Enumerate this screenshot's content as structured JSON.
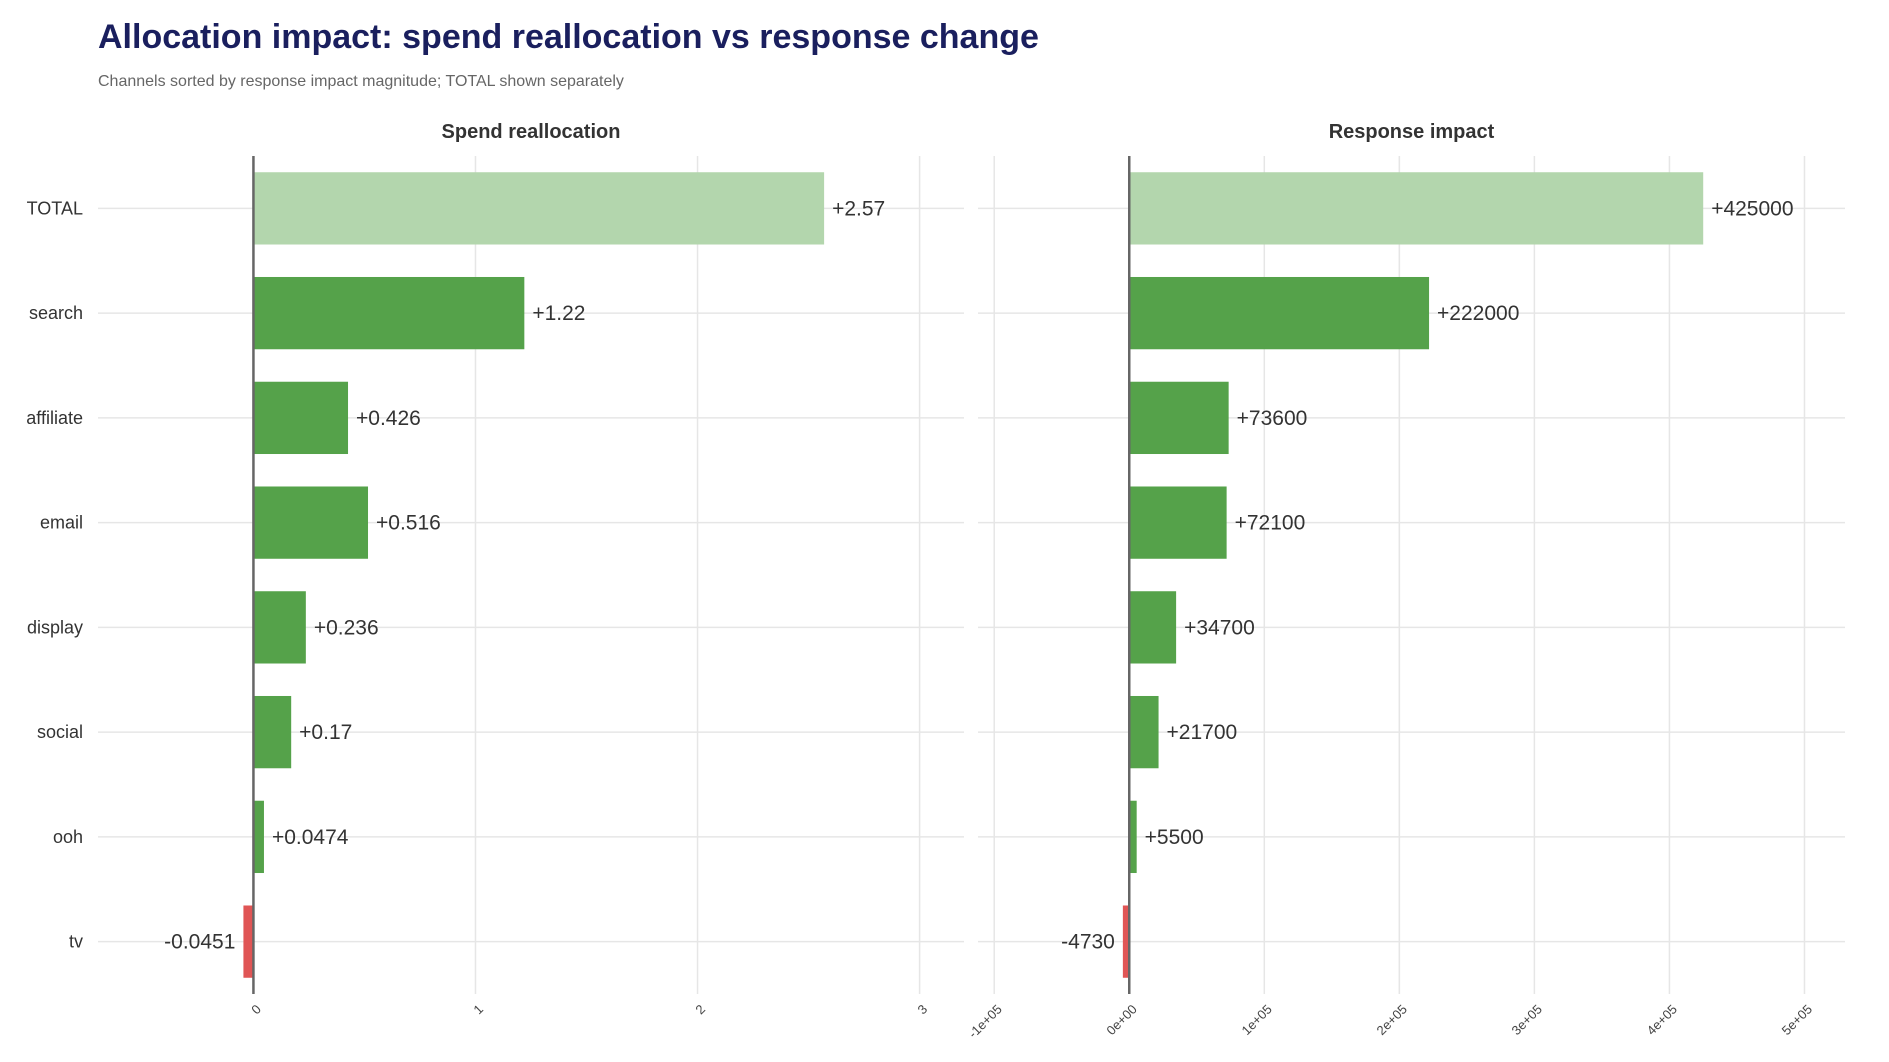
{
  "title": "Allocation impact: spend reallocation vs response change",
  "subtitle": "Channels sorted by response impact magnitude; TOTAL shown separately",
  "colors": {
    "title": "#1a1f5e",
    "subtitle": "#666666",
    "panel_title": "#333333",
    "label": "#333333",
    "tick": "#444444",
    "grid": "#e6e6e6",
    "zero_line": "#666666",
    "positive": "#55a24a",
    "negative": "#e05555",
    "total": "#b3d6ad"
  },
  "chart_data": {
    "type": "bar",
    "orientation": "horizontal",
    "categories": [
      "TOTAL",
      "search",
      "affiliate",
      "email",
      "display",
      "social",
      "ooh",
      "tv"
    ],
    "panels": [
      {
        "title": "Spend reallocation",
        "values": [
          2.57,
          1.22,
          0.426,
          0.516,
          0.236,
          0.17,
          0.0474,
          -0.0451
        ],
        "data_labels": [
          "+2.57",
          "+1.22",
          "+0.426",
          "+0.516",
          "+0.236",
          "+0.17",
          "+0.0474",
          "-0.0451"
        ],
        "xlim": [
          -0.7,
          3.2
        ],
        "ticks": [
          0,
          1,
          2,
          3
        ],
        "tick_labels": [
          "0",
          "1",
          "2",
          "3"
        ]
      },
      {
        "title": "Response impact",
        "values": [
          425000,
          222000,
          73600,
          72100,
          34700,
          21700,
          5500,
          -4730
        ],
        "data_labels": [
          "+425000",
          "+222000",
          "+73600",
          "+72100",
          "+34700",
          "+21700",
          "+5500",
          "-4730"
        ],
        "xlim": [
          -112000,
          530000
        ],
        "ticks": [
          -100000,
          0,
          100000,
          200000,
          300000,
          400000,
          500000
        ],
        "tick_labels": [
          "-1e+05",
          "0e+00",
          "1e+05",
          "2e+05",
          "3e+05",
          "4e+05",
          "5e+05"
        ]
      }
    ],
    "total_category": "TOTAL",
    "grid": true,
    "legend": "none"
  }
}
